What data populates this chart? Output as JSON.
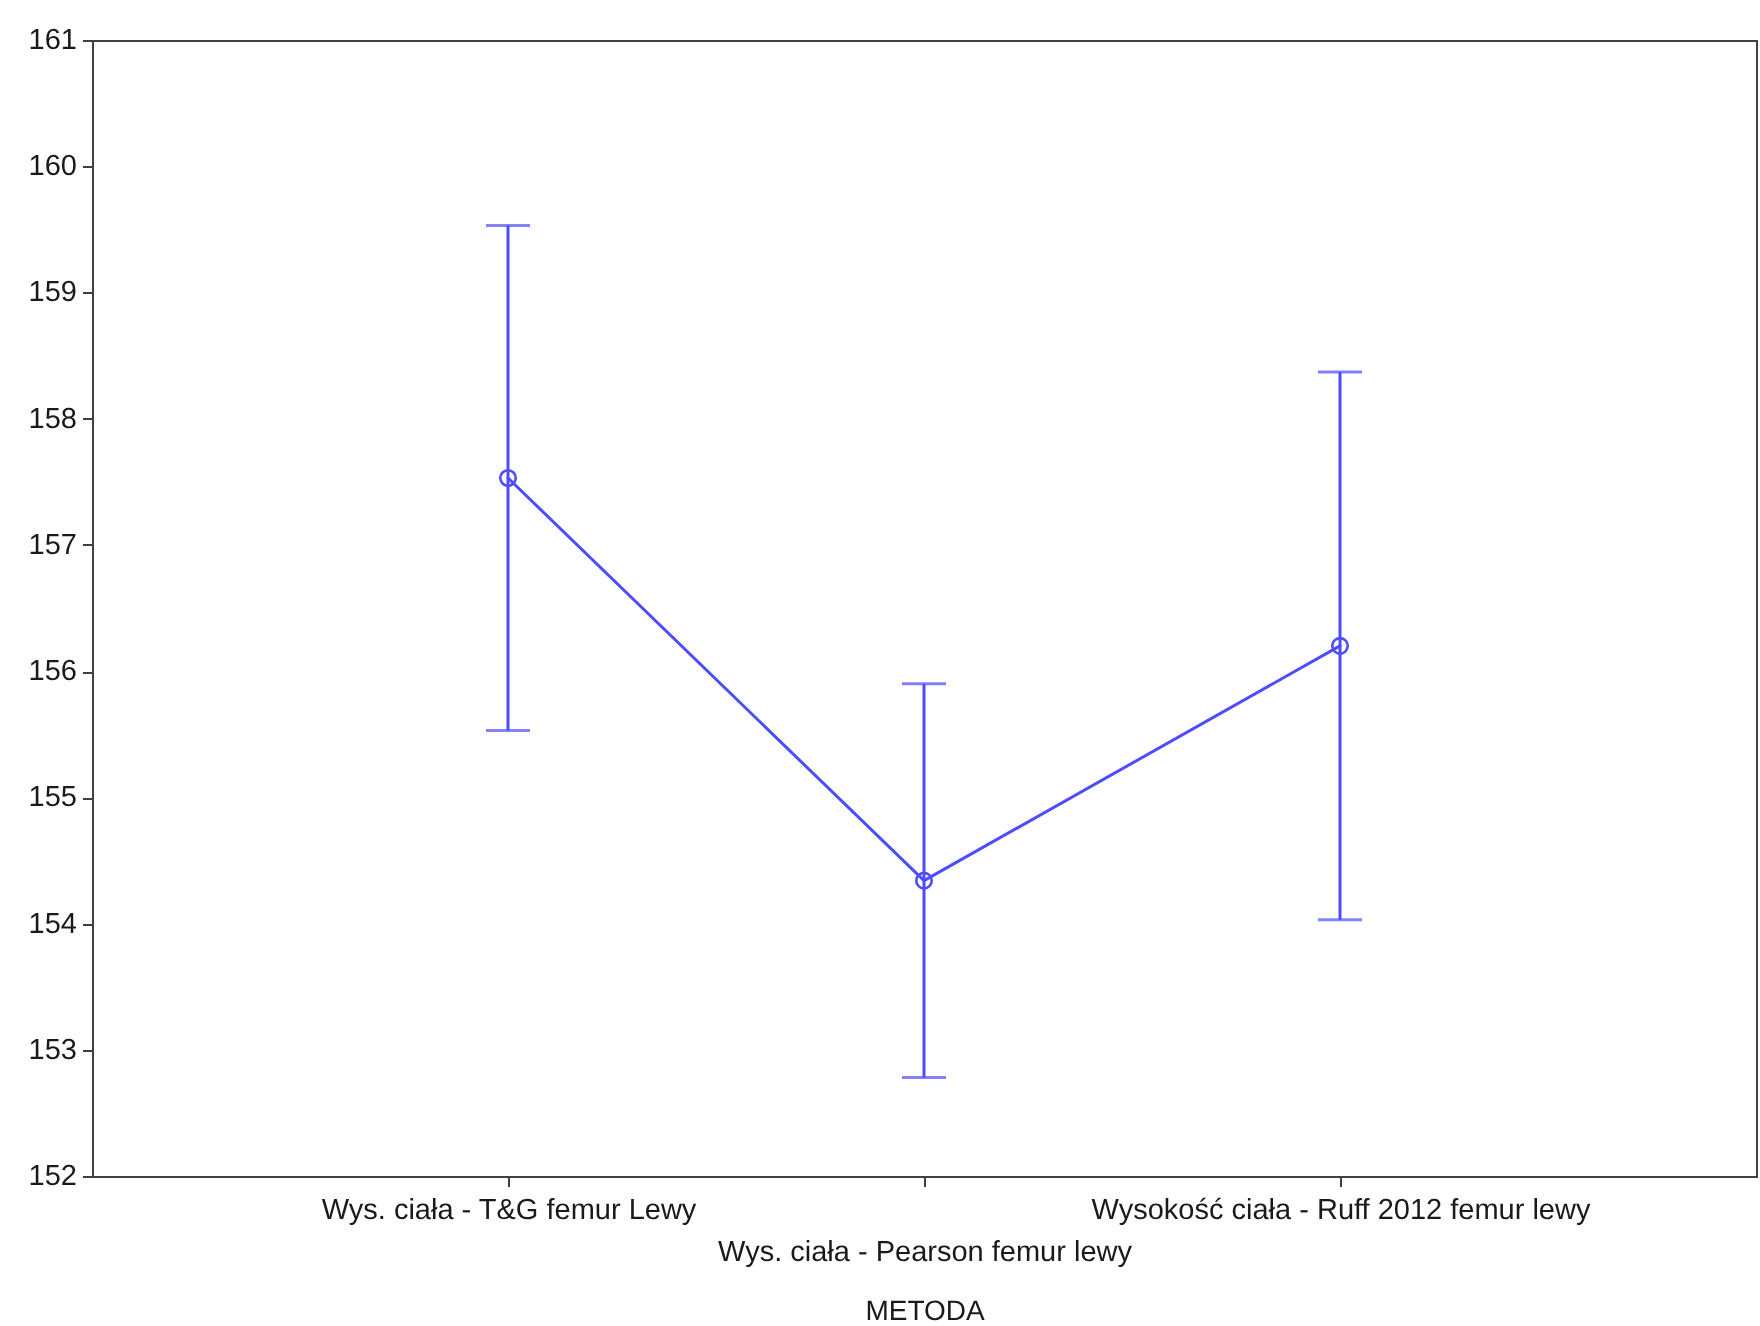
{
  "chart_data": {
    "type": "line",
    "categories": [
      "Wys. ciała - T&G femur Lewy",
      "Wys. ciała - Pearson femur lewy",
      "Wysokość ciała - Ruff 2012 femur lewy"
    ],
    "values": [
      157.53,
      154.34,
      156.2
    ],
    "errors": [
      2.0,
      1.56,
      2.17
    ],
    "color": "#4d4dff",
    "xlabel": "METODA",
    "ylim": [
      152,
      161
    ],
    "yticks": [
      152,
      153,
      154,
      155,
      156,
      157,
      158,
      159,
      160,
      161
    ],
    "marker": "circle",
    "line_style": "solid",
    "grid": false
  }
}
